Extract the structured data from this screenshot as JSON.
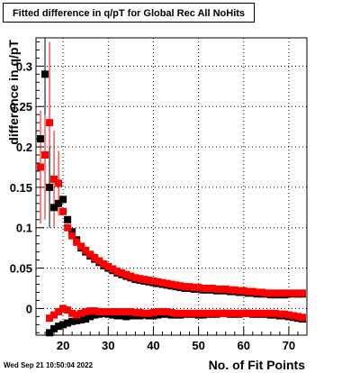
{
  "chart_data": {
    "type": "scatter",
    "title": "Fitted difference in q/pT for Global Rec All NoHits",
    "xlabel": "No. of Fit Points",
    "ylabel": "difference in q/pT",
    "xlim": [
      14,
      74
    ],
    "ylim": [
      -0.033,
      0.335
    ],
    "x_ticks": [
      20,
      30,
      40,
      50,
      60,
      70
    ],
    "y_ticks": [
      0,
      0.05,
      0.1,
      0.15,
      0.2,
      0.25,
      0.3
    ],
    "y_tick_labels": [
      "0",
      "0.05",
      "0.1",
      "0.15",
      "0.2",
      "0.25",
      "0.3"
    ],
    "grid": true,
    "colors": {
      "series_black": "#000000",
      "series_red": "#ff0000"
    },
    "series": [
      {
        "marker": "square",
        "color": "#000000",
        "x": [
          15,
          16,
          17,
          18,
          19,
          20,
          21,
          22,
          23,
          24,
          25,
          26,
          27,
          28,
          29,
          30,
          31,
          32,
          33,
          34,
          35,
          36,
          37,
          38,
          39,
          40,
          41,
          42,
          43,
          44,
          45,
          46,
          47,
          48,
          49,
          50,
          51,
          52,
          53,
          54,
          55,
          56,
          57,
          58,
          59,
          60,
          61,
          62,
          63,
          64,
          65,
          66,
          67,
          68,
          69,
          70,
          71,
          72,
          73
        ],
        "y": [
          0.21,
          0.29,
          0.15,
          0.125,
          0.13,
          0.135,
          0.11,
          0.095,
          0.085,
          0.075,
          0.07,
          0.065,
          0.061,
          0.057,
          0.053,
          0.05,
          0.047,
          0.044,
          0.042,
          0.04,
          0.038,
          0.036,
          0.035,
          0.034,
          0.033,
          0.032,
          0.031,
          0.03,
          0.029,
          0.028,
          0.027,
          0.026,
          0.025,
          0.025,
          0.024,
          0.024,
          0.023,
          0.023,
          0.023,
          0.022,
          0.022,
          0.022,
          0.021,
          0.021,
          0.02,
          0.02,
          0.019,
          0.019,
          0.018,
          0.018,
          0.018,
          0.017,
          0.017,
          0.017,
          0.017,
          0.018,
          0.018,
          0.018,
          0.018
        ]
      },
      {
        "marker": "square",
        "color": "#ff0000",
        "x": [
          15,
          16,
          17,
          18,
          19,
          20,
          21,
          22,
          23,
          24,
          25,
          26,
          27,
          28,
          29,
          30,
          31,
          32,
          33,
          34,
          35,
          36,
          37,
          38,
          39,
          40,
          41,
          42,
          43,
          44,
          45,
          46,
          47,
          48,
          49,
          50,
          51,
          52,
          53,
          54,
          55,
          56,
          57,
          58,
          59,
          60,
          61,
          62,
          63,
          64,
          65,
          66,
          67,
          68,
          69,
          70,
          71,
          72,
          73
        ],
        "y": [
          0.175,
          0.19,
          0.23,
          0.16,
          0.155,
          0.12,
          0.1,
          0.09,
          0.082,
          0.077,
          0.072,
          0.067,
          0.063,
          0.059,
          0.055,
          0.052,
          0.049,
          0.046,
          0.044,
          0.042,
          0.04,
          0.038,
          0.037,
          0.036,
          0.035,
          0.034,
          0.033,
          0.032,
          0.031,
          0.03,
          0.029,
          0.028,
          0.027,
          0.027,
          0.026,
          0.026,
          0.025,
          0.025,
          0.025,
          0.024,
          0.024,
          0.024,
          0.023,
          0.023,
          0.022,
          0.022,
          0.021,
          0.021,
          0.02,
          0.02,
          0.019,
          0.019,
          0.019,
          0.019,
          0.019,
          0.019,
          0.019,
          0.019,
          0.019
        ]
      },
      {
        "marker": "square",
        "color": "#000000",
        "x": [
          17,
          18,
          19,
          20,
          21,
          22,
          23,
          24,
          25,
          26,
          27,
          28,
          29,
          30,
          31,
          32,
          33,
          34,
          35,
          36,
          37,
          38,
          39,
          40,
          41,
          42,
          43,
          44,
          45,
          46,
          47,
          48,
          49,
          50,
          51,
          52,
          53,
          54,
          55,
          56,
          57,
          58,
          59,
          60,
          61,
          62,
          63,
          64,
          65,
          66,
          67,
          68,
          69,
          70,
          71,
          72,
          73
        ],
        "y": [
          -0.03,
          -0.025,
          -0.022,
          -0.02,
          -0.018,
          -0.016,
          -0.015,
          -0.014,
          -0.013,
          -0.01,
          -0.008,
          -0.007,
          -0.006,
          -0.007,
          -0.008,
          -0.009,
          -0.009,
          -0.01,
          -0.009,
          -0.009,
          -0.009,
          -0.008,
          -0.009,
          -0.009,
          -0.008,
          -0.007,
          -0.007,
          -0.008,
          -0.008,
          -0.008,
          -0.007,
          -0.007,
          -0.007,
          -0.008,
          -0.008,
          -0.007,
          -0.007,
          -0.007,
          -0.006,
          -0.006,
          -0.007,
          -0.007,
          -0.007,
          -0.006,
          -0.006,
          -0.007,
          -0.007,
          -0.007,
          -0.007,
          -0.008,
          -0.008,
          -0.009,
          -0.009,
          -0.01,
          -0.011,
          -0.012,
          -0.013
        ]
      },
      {
        "marker": "square",
        "color": "#ff0000",
        "x": [
          17,
          18,
          19,
          20,
          21,
          22,
          23,
          24,
          25,
          26,
          27,
          28,
          29,
          30,
          31,
          32,
          33,
          34,
          35,
          36,
          37,
          38,
          39,
          40,
          41,
          42,
          43,
          44,
          45,
          46,
          47,
          48,
          49,
          50,
          51,
          52,
          53,
          54,
          55,
          56,
          57,
          58,
          59,
          60,
          61,
          62,
          63,
          64,
          65,
          66,
          67,
          68,
          69,
          70,
          71,
          72,
          73
        ],
        "y": [
          -0.012,
          -0.008,
          -0.004,
          0.0,
          -0.002,
          -0.006,
          -0.008,
          -0.006,
          -0.004,
          -0.003,
          -0.003,
          -0.004,
          -0.004,
          -0.004,
          -0.004,
          -0.004,
          -0.004,
          -0.004,
          -0.004,
          -0.005,
          -0.005,
          -0.006,
          -0.006,
          -0.005,
          -0.004,
          -0.004,
          -0.004,
          -0.005,
          -0.006,
          -0.006,
          -0.006,
          -0.006,
          -0.006,
          -0.006,
          -0.006,
          -0.006,
          -0.006,
          -0.006,
          -0.006,
          -0.006,
          -0.006,
          -0.006,
          -0.006,
          -0.006,
          -0.006,
          -0.006,
          -0.006,
          -0.006,
          -0.006,
          -0.006,
          -0.006,
          -0.007,
          -0.007,
          -0.008,
          -0.009,
          -0.01,
          -0.011
        ]
      }
    ],
    "error_bars": [
      {
        "x": 15,
        "y": 0.175,
        "err": 0.07,
        "color": "#ff0000"
      },
      {
        "x": 16,
        "y": 0.19,
        "err": 0.08,
        "color": "#ff0000"
      },
      {
        "x": 17,
        "y": 0.23,
        "err": 0.1,
        "color": "#ff0000"
      },
      {
        "x": 18,
        "y": 0.16,
        "err": 0.06,
        "color": "#ff0000"
      },
      {
        "x": 19,
        "y": 0.155,
        "err": 0.04,
        "color": "#ff0000"
      },
      {
        "x": 16,
        "y": 0.29,
        "err": 0.05,
        "color": "#000000"
      },
      {
        "x": 17,
        "y": 0.15,
        "err": 0.05,
        "color": "#000000"
      }
    ]
  },
  "footer": {
    "timestamp": "Wed Sep 21 10:50:04 2022"
  }
}
